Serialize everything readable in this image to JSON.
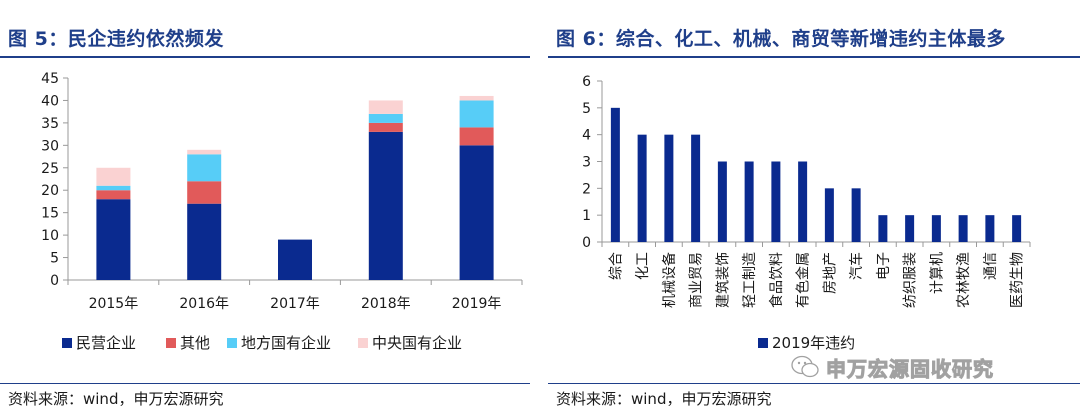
{
  "left": {
    "title": "图 5：民企违约依然频发",
    "source": "资料来源：wind，申万宏源研究"
  },
  "right": {
    "title": "图 6：综合、化工、机械、商贸等新增违约主体最多",
    "source": "资料来源：wind，申万宏源研究"
  },
  "watermark": "申万宏源固收研究",
  "chart_data": [
    {
      "type": "bar",
      "stacked": true,
      "categories": [
        "2015年",
        "2016年",
        "2017年",
        "2018年",
        "2019年"
      ],
      "series": [
        {
          "name": "民营企业",
          "color": "#0a2a8f",
          "values": [
            18,
            17,
            9,
            33,
            30
          ]
        },
        {
          "name": "其他",
          "color": "#e15a5a",
          "values": [
            2,
            5,
            0,
            2,
            4
          ]
        },
        {
          "name": "地方国有企业",
          "color": "#57cdf7",
          "values": [
            1,
            6,
            0,
            2,
            6
          ]
        },
        {
          "name": "中央国有企业",
          "color": "#fad2d2",
          "values": [
            4,
            1,
            0,
            3,
            1
          ]
        }
      ],
      "ylim": [
        0,
        45
      ],
      "yticks": [
        0,
        5,
        10,
        15,
        20,
        25,
        30,
        35,
        40,
        45
      ],
      "grid": false,
      "legend": "bottom"
    },
    {
      "type": "bar",
      "categories": [
        "综合",
        "化工",
        "机械设备",
        "商业贸易",
        "建筑装饰",
        "轻工制造",
        "食品饮料",
        "有色金属",
        "房地产",
        "汽车",
        "电子",
        "纺织服装",
        "计算机",
        "农林牧渔",
        "通信",
        "医药生物"
      ],
      "series": [
        {
          "name": "2019年违约",
          "color": "#0a2a8f",
          "values": [
            5,
            4,
            4,
            4,
            3,
            3,
            3,
            3,
            2,
            2,
            1,
            1,
            1,
            1,
            1,
            1
          ]
        }
      ],
      "ylim": [
        0,
        6
      ],
      "yticks": [
        0,
        1,
        2,
        3,
        4,
        5,
        6
      ],
      "grid": false,
      "legend": "bottom"
    }
  ]
}
